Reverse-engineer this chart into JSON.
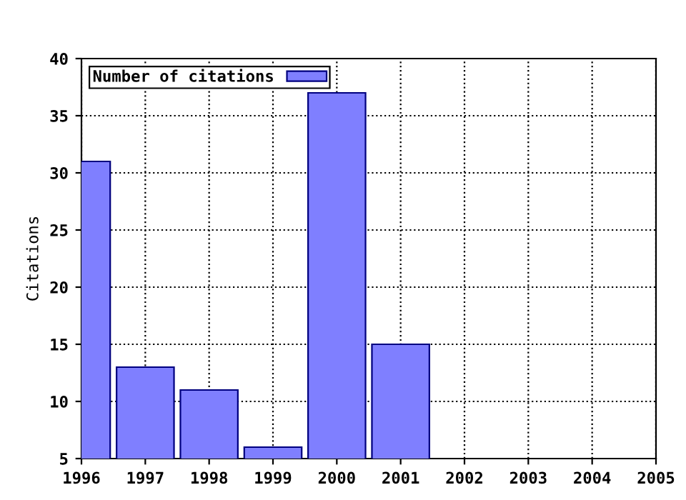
{
  "chart_data": {
    "type": "bar",
    "ylabel": "Citations",
    "x": [
      1996,
      1997,
      1998,
      1999,
      2000,
      2001
    ],
    "series": [
      {
        "name": "Number of citations",
        "color": "#7f7fff",
        "values": [
          31,
          13,
          11,
          6,
          37,
          15
        ]
      }
    ],
    "xlim": [
      1996,
      2005
    ],
    "xticks": [
      1996,
      1997,
      1998,
      1999,
      2000,
      2001,
      2002,
      2003,
      2004,
      2005
    ],
    "ylim": [
      5,
      40
    ],
    "yticks": [
      5,
      10,
      15,
      20,
      25,
      30,
      35,
      40
    ],
    "grid": true,
    "line_style": "dotted",
    "legend": "top left"
  }
}
